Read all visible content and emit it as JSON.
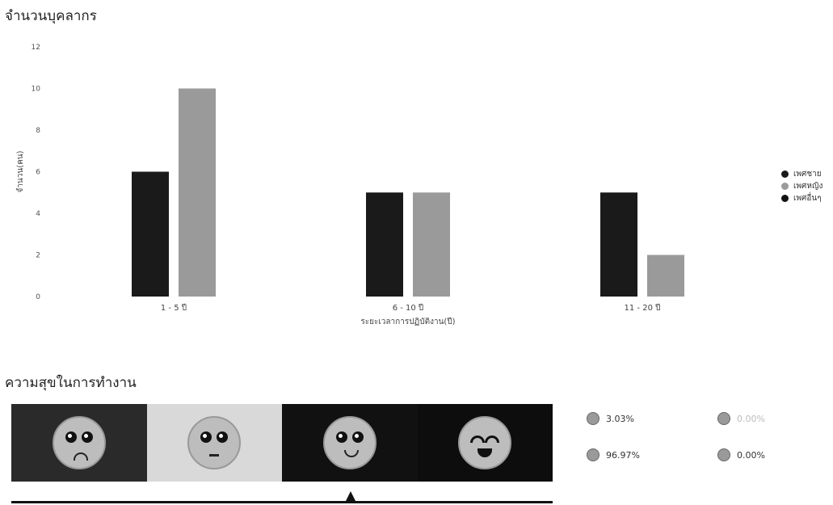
{
  "section1": {
    "title": "จำนวนบุคลากร"
  },
  "legend": [
    {
      "label": "เพศชาย",
      "color": "#1a1a1a"
    },
    {
      "label": "เพศหญิง",
      "color": "#9a9a9a"
    },
    {
      "label": "เพศอื่นๆ",
      "color": "#111111"
    }
  ],
  "chart_data": {
    "type": "bar",
    "categories": [
      "1 - 5 ปี",
      "6 - 10 ปี",
      "11 - 20 ปี"
    ],
    "series": [
      {
        "name": "เพศชาย",
        "values": [
          6,
          5,
          5
        ],
        "color": "#1a1a1a"
      },
      {
        "name": "เพศหญิง",
        "values": [
          10,
          5,
          2
        ],
        "color": "#9a9a9a"
      },
      {
        "name": "เพศอื่นๆ",
        "values": [
          0,
          0,
          0
        ],
        "color": "#111111"
      }
    ],
    "title": "จำนวนบุคลากร",
    "xlabel": "ระยะเวลาการปฏิบัติงาน(ปี)",
    "ylabel": "จำนวน(คน)",
    "ylim": [
      0,
      12
    ],
    "yticks": [
      0,
      2,
      4,
      6,
      8,
      10,
      12
    ],
    "grid": false,
    "legend_position": "right"
  },
  "section2": {
    "title": "ความสุขในการทำงาน"
  },
  "happiness": {
    "segments": [
      {
        "name": "sad",
        "color": "#2a2a2a"
      },
      {
        "name": "neutral",
        "color": "#d9d9d9"
      },
      {
        "name": "smile",
        "color": "#111111"
      },
      {
        "name": "grin",
        "color": "#0d0d0d"
      }
    ],
    "stats": [
      {
        "value": "3.03%",
        "icon": "sad-face-icon"
      },
      {
        "value": "0.00%",
        "icon": "neutral-face-icon"
      },
      {
        "value": "96.97%",
        "icon": "smile-face-icon"
      },
      {
        "value": "0.00%",
        "icon": "grin-face-icon"
      }
    ]
  }
}
